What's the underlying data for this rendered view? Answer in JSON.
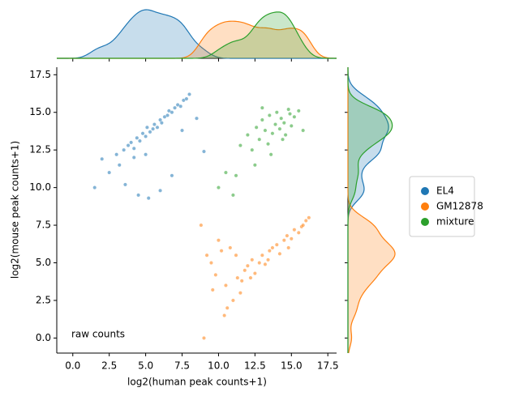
{
  "chart_data": {
    "type": "scatter",
    "xlabel": "log2(human peak counts+1)",
    "ylabel": "log2(mouse peak counts+1)",
    "annotation": "raw counts",
    "xlim": [
      -1.1,
      18.1
    ],
    "ylim": [
      -1.0,
      18.0
    ],
    "xticks": [
      {
        "value": 0,
        "label": "0.0"
      },
      {
        "value": 2.5,
        "label": "2.5"
      },
      {
        "value": 5,
        "label": "5.0"
      },
      {
        "value": 7.5,
        "label": "7.5"
      },
      {
        "value": 10,
        "label": "10.0"
      },
      {
        "value": 12.5,
        "label": "12.5"
      },
      {
        "value": 15,
        "label": "15.0"
      },
      {
        "value": 17.5,
        "label": "17.5"
      }
    ],
    "yticks": [
      {
        "value": 0,
        "label": "0.0"
      },
      {
        "value": 2.5,
        "label": "2.5"
      },
      {
        "value": 5,
        "label": "5.0"
      },
      {
        "value": 7.5,
        "label": "7.5"
      },
      {
        "value": 10,
        "label": "10.0"
      },
      {
        "value": 12.5,
        "label": "12.5"
      },
      {
        "value": 15,
        "label": "15.0"
      },
      {
        "value": 17.5,
        "label": "17.5"
      }
    ],
    "legend": "right",
    "series": [
      {
        "name": "EL4",
        "color": "#1f77b4",
        "x": [
          1.5,
          2.0,
          2.5,
          3.0,
          3.2,
          3.5,
          3.8,
          4.0,
          4.2,
          4.4,
          4.6,
          4.8,
          5.0,
          5.1,
          5.3,
          5.5,
          5.6,
          5.8,
          6.0,
          6.1,
          6.3,
          6.5,
          6.6,
          6.8,
          7.0,
          7.2,
          7.4,
          7.6,
          7.8,
          8.0,
          4.5,
          5.2,
          6.0,
          6.8,
          3.6,
          4.2,
          5.0,
          7.5,
          8.5,
          9.0
        ],
        "y": [
          10.0,
          11.9,
          11.0,
          12.2,
          11.5,
          12.5,
          12.8,
          13.0,
          12.6,
          13.3,
          13.1,
          13.6,
          13.4,
          14.0,
          13.7,
          13.9,
          14.2,
          14.0,
          14.5,
          14.3,
          14.7,
          14.8,
          15.1,
          15.0,
          15.3,
          15.5,
          15.4,
          15.8,
          15.9,
          16.2,
          9.5,
          9.3,
          9.8,
          10.8,
          10.2,
          12.0,
          12.2,
          13.8,
          14.6,
          12.4
        ]
      },
      {
        "name": "GM12878",
        "color": "#ff7f0e",
        "x": [
          9.0,
          9.5,
          9.8,
          10.2,
          10.5,
          10.8,
          11.0,
          11.3,
          11.5,
          11.8,
          12.0,
          12.3,
          12.5,
          12.8,
          13.0,
          13.2,
          13.5,
          13.7,
          14.0,
          14.2,
          14.5,
          14.7,
          15.0,
          15.2,
          15.5,
          15.7,
          16.0,
          16.2,
          9.2,
          9.6,
          10.0,
          10.6,
          11.2,
          11.6,
          12.2,
          13.4,
          14.8,
          15.8,
          8.8,
          10.4
        ],
        "y": [
          0.0,
          5.0,
          4.2,
          5.8,
          3.5,
          6.0,
          2.5,
          4.0,
          3.0,
          4.5,
          4.8,
          5.2,
          4.3,
          5.0,
          5.5,
          4.9,
          5.8,
          6.0,
          6.2,
          5.6,
          6.5,
          6.8,
          6.6,
          7.2,
          7.0,
          7.4,
          7.8,
          8.0,
          5.5,
          3.2,
          6.5,
          2.0,
          5.5,
          3.8,
          4.0,
          5.2,
          6.0,
          7.5,
          7.5,
          1.5
        ]
      },
      {
        "name": "mixture",
        "color": "#2ca02c",
        "x": [
          11.5,
          12.0,
          12.3,
          12.6,
          12.8,
          13.0,
          13.2,
          13.4,
          13.5,
          13.7,
          13.9,
          14.0,
          14.2,
          14.3,
          14.5,
          14.6,
          14.8,
          15.0,
          15.2,
          15.5,
          15.8,
          12.5,
          13.6,
          14.4,
          10.0,
          10.5,
          11.2,
          11.0,
          13.0,
          14.9
        ],
        "y": [
          12.8,
          13.5,
          12.5,
          14.0,
          13.2,
          14.5,
          13.8,
          12.9,
          14.8,
          13.6,
          14.2,
          15.0,
          13.9,
          14.6,
          14.3,
          13.5,
          15.2,
          14.1,
          14.7,
          15.1,
          13.8,
          11.5,
          12.2,
          13.2,
          10.0,
          11.0,
          10.8,
          9.5,
          15.3,
          14.9
        ]
      }
    ]
  }
}
